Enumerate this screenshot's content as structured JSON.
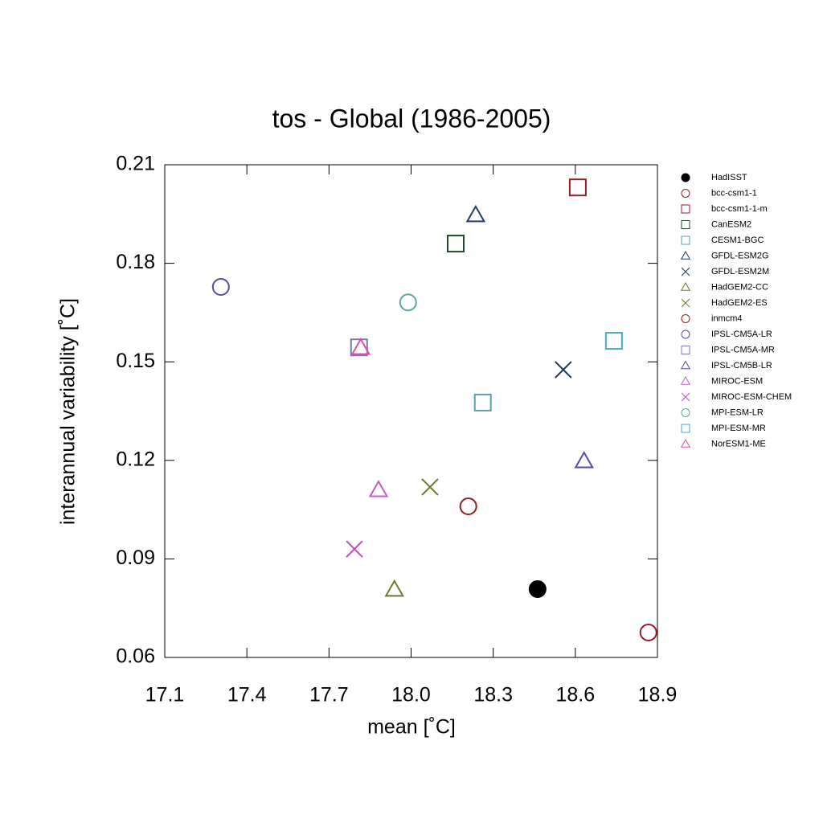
{
  "chart_data": {
    "type": "scatter",
    "title": "tos - Global (1986-2005)",
    "xlabel": "mean [˚C]",
    "ylabel": "interannual variability [˚C]",
    "xlim": [
      17.1,
      18.9
    ],
    "xticks": [
      17.1,
      17.4,
      17.7,
      {
        "value": 18,
        "label": "18.0"
      },
      18.3,
      18.6,
      18.9
    ],
    "ylim": [
      0.06,
      0.21
    ],
    "yticks": [
      0.21,
      0.18,
      0.15,
      0.12,
      0.09,
      0.06
    ],
    "legend": "right",
    "series": [
      {
        "name": "HadISST",
        "color": "#000000",
        "marker": "dot",
        "x": [
          18.462
        ],
        "values": [
          0.0808
        ]
      },
      {
        "name": "bcc-csm1-1",
        "color": "#9b1c24",
        "marker": "circle",
        "x": [
          18.867
        ],
        "values": [
          0.0676
        ]
      },
      {
        "name": "bcc-csm1-1-m",
        "color": "#9b1c24",
        "marker": "square",
        "x": [
          18.609
        ],
        "values": [
          0.2031
        ]
      },
      {
        "name": "CanESM2",
        "color": "#1f4a2a",
        "marker": "square",
        "x": [
          18.163
        ],
        "values": [
          0.186
        ]
      },
      {
        "name": "CESM1-BGC",
        "color": "#5a9faa",
        "marker": "square",
        "x": [
          18.262
        ],
        "values": [
          0.1376
        ]
      },
      {
        "name": "GFDL-ESM2G",
        "color": "#233a6b",
        "marker": "triangle",
        "x": [
          18.236
        ],
        "values": [
          0.1946
        ]
      },
      {
        "name": "GFDL-ESM2M",
        "color": "#223a5a",
        "marker": "cross",
        "x": [
          18.556
        ],
        "values": [
          0.1476
        ]
      },
      {
        "name": "HadGEM2-CC",
        "color": "#6b7a2a",
        "marker": "triangle",
        "x": [
          17.939
        ],
        "values": [
          0.0806
        ]
      },
      {
        "name": "HadGEM2-ES",
        "color": "#6b7a2a",
        "marker": "cross",
        "x": [
          18.069
        ],
        "values": [
          0.1119
        ]
      },
      {
        "name": "inmcm4",
        "color": "#9b1c24",
        "marker": "circle",
        "x": [
          18.209
        ],
        "values": [
          0.106
        ]
      },
      {
        "name": "IPSL-CM5A-LR",
        "color": "#5a4aa0",
        "marker": "circle",
        "x": [
          17.305
        ],
        "values": [
          0.1728
        ]
      },
      {
        "name": "IPSL-CM5A-MR",
        "color": "#8070b8",
        "marker": "square",
        "x": [
          17.81
        ],
        "values": [
          0.1544
        ]
      },
      {
        "name": "IPSL-CM5B-LR",
        "color": "#5a4aa8",
        "marker": "triangle",
        "x": [
          18.632
        ],
        "values": [
          0.1197
        ]
      },
      {
        "name": "MIROC-ESM",
        "color": "#c060c0",
        "marker": "triangle",
        "x": [
          17.881
        ],
        "values": [
          0.1109
        ]
      },
      {
        "name": "MIROC-ESM-CHEM",
        "color": "#c050c0",
        "marker": "cross",
        "x": [
          17.793
        ],
        "values": [
          0.093
        ]
      },
      {
        "name": "MPI-ESM-LR",
        "color": "#5aa5a0",
        "marker": "circle",
        "x": [
          17.989
        ],
        "values": [
          0.1681
        ]
      },
      {
        "name": "MPI-ESM-MR",
        "color": "#49a8c8",
        "marker": "square",
        "x": [
          18.741
        ],
        "values": [
          0.1564
        ]
      },
      {
        "name": "NorESM1-ME",
        "color": "#e050a0",
        "marker": "triangle",
        "x": [
          17.816
        ],
        "values": [
          0.1542
        ]
      }
    ]
  }
}
